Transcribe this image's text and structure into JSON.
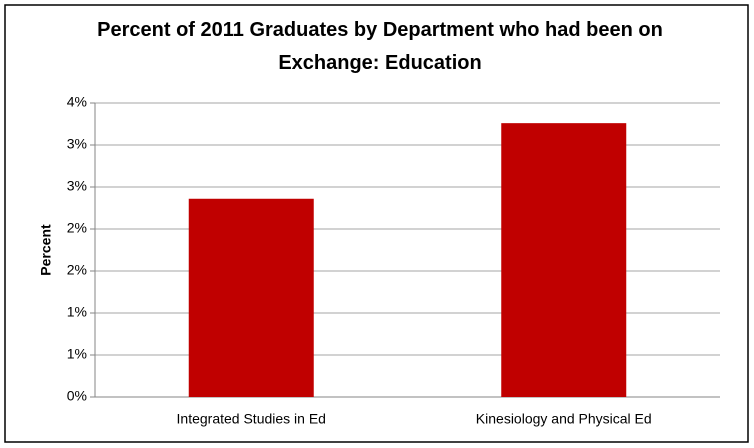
{
  "chart_data": {
    "type": "bar",
    "title": "Percent of 2011 Graduates by Department who had been on Exchange: Education",
    "y_label": "Percent",
    "categories": [
      "Integrated Studies in Ed",
      "Kinesiology and Physical Ed"
    ],
    "values": [
      2.36,
      3.26
    ],
    "color": "#c00000",
    "ylim": [
      0,
      3.5
    ],
    "yticks": [
      {
        "value": 0,
        "label": "0%"
      },
      {
        "value": 0.5,
        "label": "1%"
      },
      {
        "value": 1,
        "label": "1%"
      },
      {
        "value": 1.5,
        "label": "2%"
      },
      {
        "value": 2,
        "label": "2%"
      },
      {
        "value": 2.5,
        "label": "3%"
      },
      {
        "value": 3,
        "label": "3%"
      },
      {
        "value": 3.5,
        "label": "4%"
      }
    ],
    "grid": true
  }
}
